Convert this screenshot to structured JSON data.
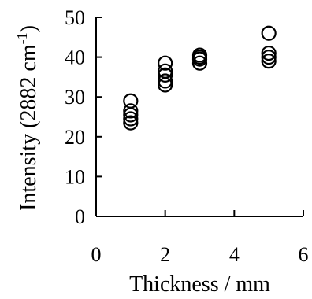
{
  "chart_data": {
    "type": "scatter",
    "title": "",
    "xlabel": "Thickness / mm",
    "ylabel_prefix": "Intensity (2882 cm",
    "ylabel_sup": "-1",
    "ylabel_suffix": ")",
    "xlim": [
      0,
      6
    ],
    "ylim": [
      0,
      50
    ],
    "xticks": [
      0,
      2,
      4,
      6
    ],
    "yticks": [
      0,
      10,
      20,
      30,
      40,
      50
    ],
    "grid": false,
    "legend": "none",
    "marker": "open-circle",
    "series": [
      {
        "points": [
          {
            "x": 1,
            "y": 23.5
          },
          {
            "x": 1,
            "y": 24.5
          },
          {
            "x": 1,
            "y": 25.5
          },
          {
            "x": 1,
            "y": 26.5
          },
          {
            "x": 1,
            "y": 29
          },
          {
            "x": 2,
            "y": 33
          },
          {
            "x": 2,
            "y": 34
          },
          {
            "x": 2,
            "y": 35.5
          },
          {
            "x": 2,
            "y": 36.5
          },
          {
            "x": 2,
            "y": 38.5
          },
          {
            "x": 3,
            "y": 38.5
          },
          {
            "x": 3,
            "y": 39.5
          },
          {
            "x": 3,
            "y": 40
          },
          {
            "x": 3,
            "y": 40.5
          },
          {
            "x": 5,
            "y": 39
          },
          {
            "x": 5,
            "y": 40
          },
          {
            "x": 5,
            "y": 41
          },
          {
            "x": 5,
            "y": 46
          }
        ]
      }
    ]
  }
}
